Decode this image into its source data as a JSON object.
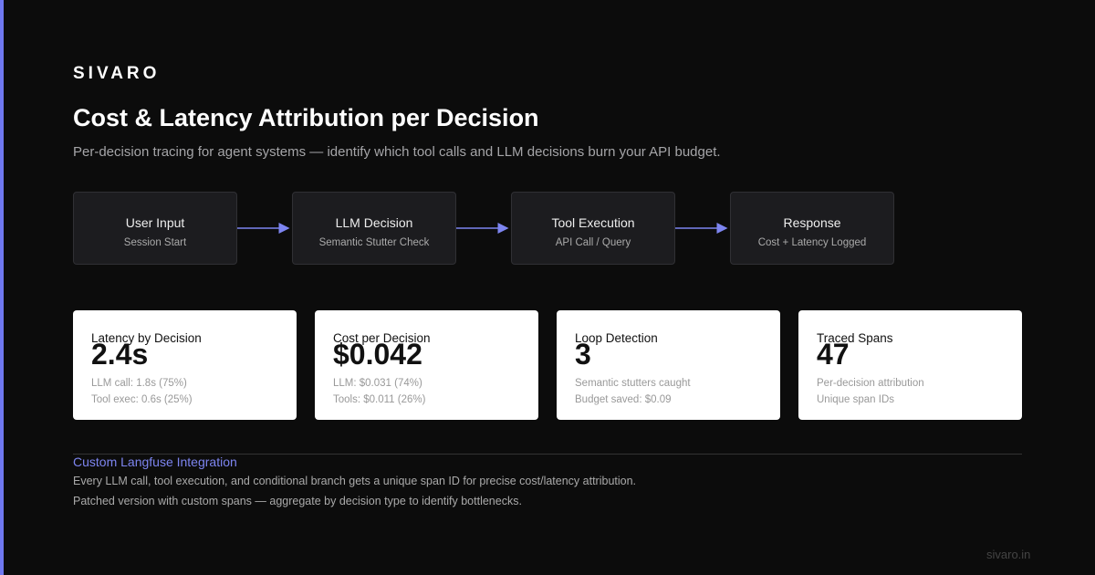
{
  "brand": "SIVARO",
  "title": "Cost & Latency Attribution per Decision",
  "subtitle": "Per-decision tracing for agent systems — identify which tool calls and LLM decisions burn your API budget.",
  "flow": [
    {
      "label": "User Input",
      "sub": "Session Start"
    },
    {
      "label": "LLM Decision",
      "sub": "Semantic Stutter Check"
    },
    {
      "label": "Tool Execution",
      "sub": "API Call / Query"
    },
    {
      "label": "Response",
      "sub": "Cost + Latency Logged"
    }
  ],
  "cards": [
    {
      "label": "Latency by Decision",
      "value": "2.4s",
      "lines": [
        "LLM call: 1.8s (75%)",
        "Tool exec: 0.6s (25%)"
      ]
    },
    {
      "label": "Cost per Decision",
      "value": "$0.042",
      "lines": [
        "LLM: $0.031 (74%)",
        "Tools: $0.011 (26%)"
      ]
    },
    {
      "label": "Loop Detection",
      "value": "3",
      "lines": [
        "Semantic stutters caught",
        "Budget saved: $0.09"
      ]
    },
    {
      "label": "Traced Spans",
      "value": "47",
      "lines": [
        "Per-decision attribution",
        "Unique span IDs"
      ]
    }
  ],
  "footer": {
    "heading": "Custom Langfuse Integration",
    "lines": [
      "Every LLM call, tool execution, and conditional branch gets a unique span ID for precise cost/latency attribution.",
      "Patched version with custom spans — aggregate by decision type to identify bottlenecks."
    ]
  },
  "url": "sivaro.in"
}
